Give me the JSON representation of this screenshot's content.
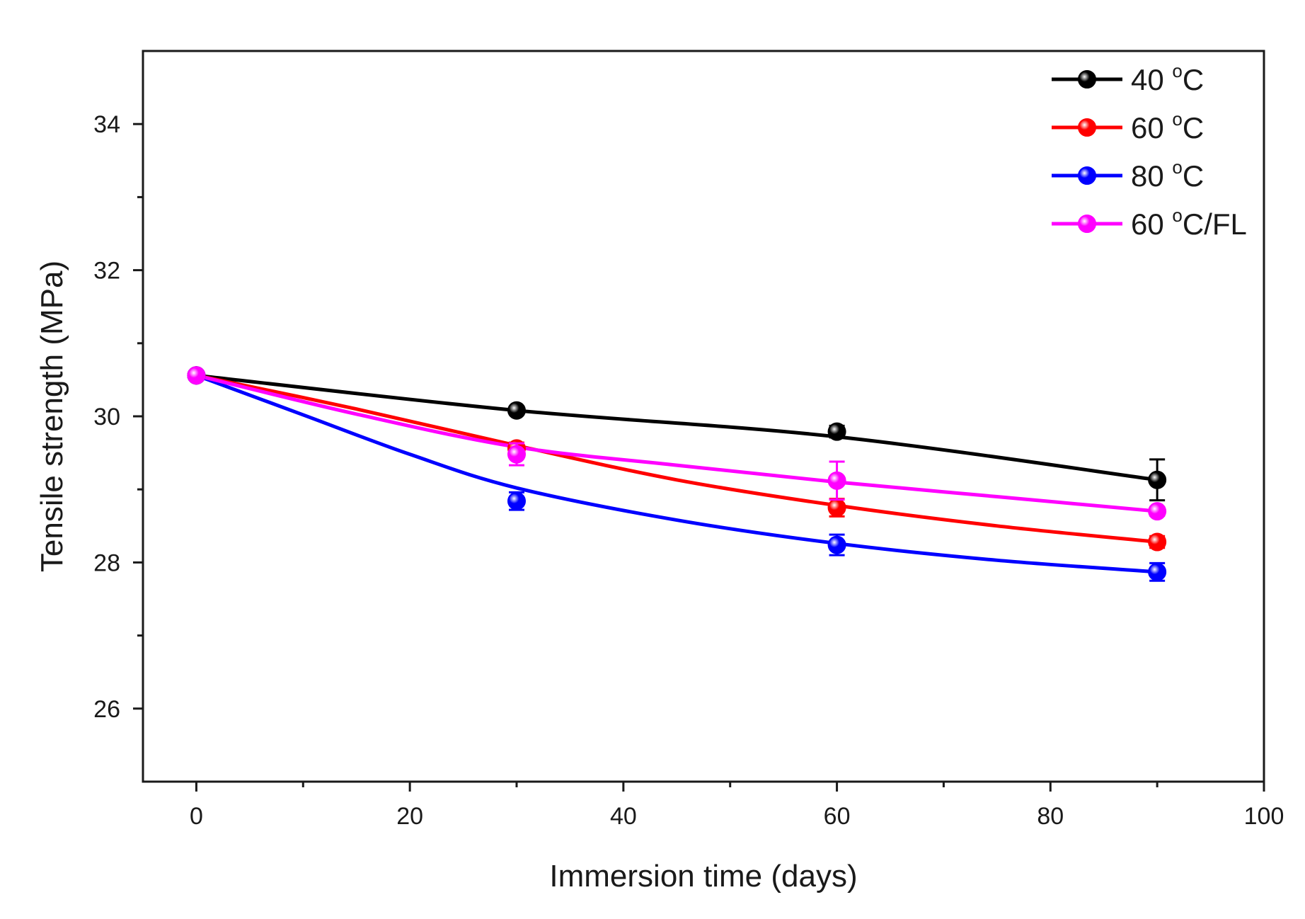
{
  "chart_data": {
    "type": "line",
    "title": "",
    "xlabel": "Immersion time (days)",
    "ylabel": "Tensile strength (MPa)",
    "xlim": [
      -5,
      100
    ],
    "ylim": [
      25,
      35
    ],
    "x_ticks": [
      0,
      20,
      40,
      60,
      80,
      100
    ],
    "x_tick_labels": [
      "0",
      "20",
      "40",
      "60",
      "80",
      "100"
    ],
    "x_minor_step": 10,
    "y_ticks": [
      26,
      28,
      30,
      32,
      34
    ],
    "y_tick_labels": [
      "26",
      "28",
      "30",
      "32",
      "34"
    ],
    "y_minor_step": 1,
    "grid": false,
    "legend_position": "top-right",
    "x": [
      0,
      30,
      60,
      90
    ],
    "series": [
      {
        "name": "40 °C",
        "label_main": "40 ",
        "label_sup": "o",
        "label_unit": "C",
        "color": "#000000",
        "values": [
          30.56,
          30.08,
          29.79,
          29.13
        ],
        "errors": [
          0.05,
          0.05,
          0.08,
          0.28
        ]
      },
      {
        "name": "60 °C",
        "label_main": "60 ",
        "label_sup": "o",
        "label_unit": "C",
        "color": "#ff0000",
        "values": [
          30.56,
          29.56,
          28.75,
          28.28
        ],
        "errors": [
          0.05,
          0.08,
          0.12,
          0.08
        ]
      },
      {
        "name": "80 °C",
        "label_main": "80 ",
        "label_sup": "o",
        "label_unit": "C",
        "color": "#0000ff",
        "values": [
          30.56,
          28.84,
          28.24,
          27.87
        ],
        "errors": [
          0.05,
          0.12,
          0.14,
          0.12
        ]
      },
      {
        "name": "60 °C/FL",
        "label_main": "60 ",
        "label_sup": "o",
        "label_unit": "C/FL",
        "color": "#ff00ff",
        "values": [
          30.56,
          29.48,
          29.12,
          28.7
        ],
        "errors": [
          0.05,
          0.15,
          0.26,
          0.06
        ]
      }
    ],
    "fit_curves": [
      {
        "series": "40 °C",
        "x": [
          0,
          30,
          60,
          90
        ],
        "y": [
          30.56,
          30.08,
          29.72,
          29.13
        ]
      },
      {
        "series": "60 °C",
        "x": [
          0,
          15,
          30,
          45,
          60,
          75,
          90
        ],
        "y": [
          30.56,
          30.1,
          29.6,
          29.13,
          28.78,
          28.5,
          28.28
        ]
      },
      {
        "series": "80 °C",
        "x": [
          0,
          10,
          20,
          30,
          45,
          60,
          75,
          90
        ],
        "y": [
          30.56,
          30.02,
          29.48,
          29.02,
          28.58,
          28.26,
          28.03,
          27.87
        ]
      },
      {
        "series": "60 °C/FL",
        "x": [
          0,
          15,
          30,
          45,
          60,
          75,
          90
        ],
        "y": [
          30.56,
          30.03,
          29.58,
          29.33,
          29.1,
          28.9,
          28.7
        ]
      }
    ]
  }
}
